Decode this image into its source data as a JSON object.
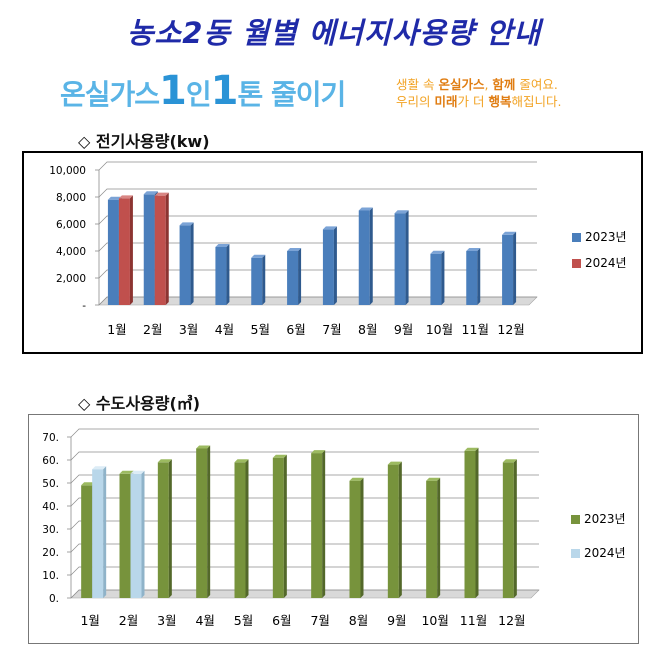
{
  "page": {
    "title": "농소2동 월별 에너지사용량 안내",
    "banner": {
      "slogan_part1": "온실가스",
      "slogan_num1": "1",
      "slogan_part2": "인",
      "slogan_num2": "1",
      "slogan_part3": "톤 줄이기",
      "tagline_line1_pre": "생활 속 ",
      "tagline_line1_bold1": "온실가스",
      "tagline_line1_mid": ", ",
      "tagline_line1_bold2": "함께",
      "tagline_line1_post": " 줄여요.",
      "tagline_line2_pre": "우리의 ",
      "tagline_line2_bold1": "미래",
      "tagline_line2_mid": "가 더 ",
      "tagline_line2_bold2": "행복",
      "tagline_line2_post": "해집니다."
    },
    "section1_heading": "◇ 전기사용량(kw)",
    "section2_heading": "◇ 수도사용량(㎥)"
  },
  "chart_data": [
    {
      "type": "bar",
      "title": "",
      "xlabel": "",
      "ylabel": "",
      "categories": [
        "1월",
        "2월",
        "3월",
        "4월",
        "5월",
        "6월",
        "7월",
        "8월",
        "9월",
        "10월",
        "11월",
        "12월"
      ],
      "ylim": [
        0,
        10000
      ],
      "yticks": [
        "-",
        "2,000",
        "4,000",
        "6,000",
        "8,000",
        "10,000"
      ],
      "ytick_values": [
        0,
        2000,
        4000,
        6000,
        8000,
        10000
      ],
      "grid": true,
      "legend": "right",
      "series": [
        {
          "name": "2023년",
          "color": "#4a7ebb",
          "side": "#2f5a8e",
          "top": "#7ba3d6",
          "values": [
            7800,
            8200,
            5900,
            4300,
            3500,
            4000,
            5600,
            7000,
            6800,
            3800,
            4000,
            5200
          ]
        },
        {
          "name": "2024년",
          "color": "#c0504d",
          "side": "#8c3431",
          "top": "#d98684",
          "values": [
            7900,
            8100,
            null,
            null,
            null,
            null,
            null,
            null,
            null,
            null,
            null,
            null
          ]
        }
      ]
    },
    {
      "type": "bar",
      "title": "",
      "xlabel": "",
      "ylabel": "",
      "categories": [
        "1월",
        "2월",
        "3월",
        "4월",
        "5월",
        "6월",
        "7월",
        "8월",
        "9월",
        "10월",
        "11월",
        "12월"
      ],
      "ylim": [
        0,
        70
      ],
      "yticks": [
        "0.",
        "10.",
        "20.",
        "30.",
        "40.",
        "50.",
        "60.",
        "70."
      ],
      "ytick_values": [
        0,
        10,
        20,
        30,
        40,
        50,
        60,
        70
      ],
      "grid": true,
      "legend": "right",
      "series": [
        {
          "name": "2023년",
          "color": "#77933c",
          "side": "#53682a",
          "top": "#9cba60",
          "values": [
            49,
            54,
            59,
            65,
            59,
            61,
            63,
            51,
            58,
            51,
            64,
            59
          ]
        },
        {
          "name": "2024년",
          "color": "#b9d7ea",
          "side": "#8fb3c9",
          "top": "#dcecf6",
          "values": [
            56,
            54,
            null,
            null,
            null,
            null,
            null,
            null,
            null,
            null,
            null,
            null
          ]
        }
      ]
    }
  ]
}
